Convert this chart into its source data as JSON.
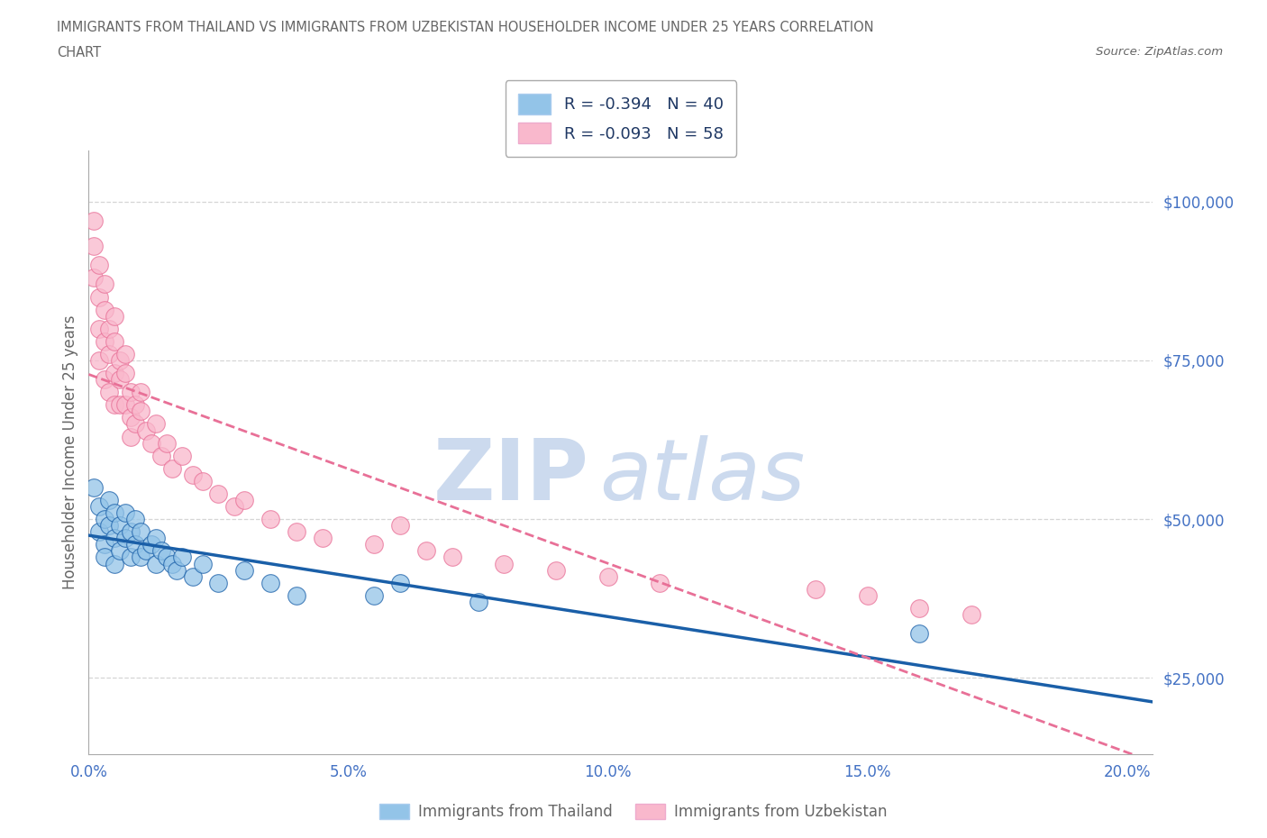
{
  "title_line1": "IMMIGRANTS FROM THAILAND VS IMMIGRANTS FROM UZBEKISTAN HOUSEHOLDER INCOME UNDER 25 YEARS CORRELATION",
  "title_line2": "CHART",
  "source_text": "Source: ZipAtlas.com",
  "ylabel": "Householder Income Under 25 years",
  "xlim": [
    0.0,
    0.205
  ],
  "ylim": [
    13000,
    108000
  ],
  "yticks": [
    25000,
    50000,
    75000,
    100000
  ],
  "ytick_labels": [
    "$25,000",
    "$50,000",
    "$75,000",
    "$100,000"
  ],
  "xticks": [
    0.0,
    0.05,
    0.1,
    0.15,
    0.2
  ],
  "xtick_labels": [
    "0.0%",
    "5.0%",
    "10.0%",
    "15.0%",
    "20.0%"
  ],
  "legend_label1": "Immigrants from Thailand",
  "legend_label2": "Immigrants from Uzbekistan",
  "r1": -0.394,
  "n1": 40,
  "r2": -0.093,
  "n2": 58,
  "color_thailand": "#93c4e8",
  "color_uzbekistan": "#f9b8cc",
  "line_color_thailand": "#1a5fa8",
  "line_color_uzbekistan": "#e87097",
  "dashed_line_color": "#e0a0b8",
  "watermark_color": "#ccdaee",
  "background_color": "#ffffff",
  "title_color": "#666666",
  "tick_color": "#4472c4",
  "legend_r_color": "#1f3864",
  "watermark_zip": "ZIP",
  "watermark_atlas": "atlas",
  "thailand_x": [
    0.001,
    0.002,
    0.002,
    0.003,
    0.003,
    0.003,
    0.004,
    0.004,
    0.005,
    0.005,
    0.005,
    0.006,
    0.006,
    0.007,
    0.007,
    0.008,
    0.008,
    0.009,
    0.009,
    0.01,
    0.01,
    0.011,
    0.012,
    0.013,
    0.013,
    0.014,
    0.015,
    0.016,
    0.017,
    0.018,
    0.02,
    0.022,
    0.025,
    0.03,
    0.035,
    0.04,
    0.055,
    0.06,
    0.075,
    0.16
  ],
  "thailand_y": [
    55000,
    52000,
    48000,
    50000,
    46000,
    44000,
    53000,
    49000,
    51000,
    47000,
    43000,
    49000,
    45000,
    51000,
    47000,
    48000,
    44000,
    50000,
    46000,
    48000,
    44000,
    45000,
    46000,
    43000,
    47000,
    45000,
    44000,
    43000,
    42000,
    44000,
    41000,
    43000,
    40000,
    42000,
    40000,
    38000,
    38000,
    40000,
    37000,
    32000
  ],
  "uzbekistan_x": [
    0.001,
    0.001,
    0.001,
    0.002,
    0.002,
    0.002,
    0.002,
    0.003,
    0.003,
    0.003,
    0.003,
    0.004,
    0.004,
    0.004,
    0.005,
    0.005,
    0.005,
    0.005,
    0.006,
    0.006,
    0.006,
    0.007,
    0.007,
    0.007,
    0.008,
    0.008,
    0.008,
    0.009,
    0.009,
    0.01,
    0.01,
    0.011,
    0.012,
    0.013,
    0.014,
    0.015,
    0.016,
    0.018,
    0.02,
    0.022,
    0.025,
    0.028,
    0.03,
    0.035,
    0.04,
    0.045,
    0.055,
    0.06,
    0.065,
    0.07,
    0.08,
    0.09,
    0.1,
    0.11,
    0.14,
    0.15,
    0.16,
    0.17
  ],
  "uzbekistan_y": [
    97000,
    93000,
    88000,
    90000,
    85000,
    80000,
    75000,
    87000,
    83000,
    78000,
    72000,
    80000,
    76000,
    70000,
    82000,
    78000,
    73000,
    68000,
    75000,
    72000,
    68000,
    76000,
    73000,
    68000,
    70000,
    66000,
    63000,
    68000,
    65000,
    70000,
    67000,
    64000,
    62000,
    65000,
    60000,
    62000,
    58000,
    60000,
    57000,
    56000,
    54000,
    52000,
    53000,
    50000,
    48000,
    47000,
    46000,
    49000,
    45000,
    44000,
    43000,
    42000,
    41000,
    40000,
    39000,
    38000,
    36000,
    35000
  ],
  "blue_line_x": [
    0.001,
    0.2
  ],
  "blue_line_y": [
    56000,
    22000
  ],
  "pink_line_x": [
    0.001,
    0.065
  ],
  "pink_line_y": [
    62000,
    50000
  ]
}
